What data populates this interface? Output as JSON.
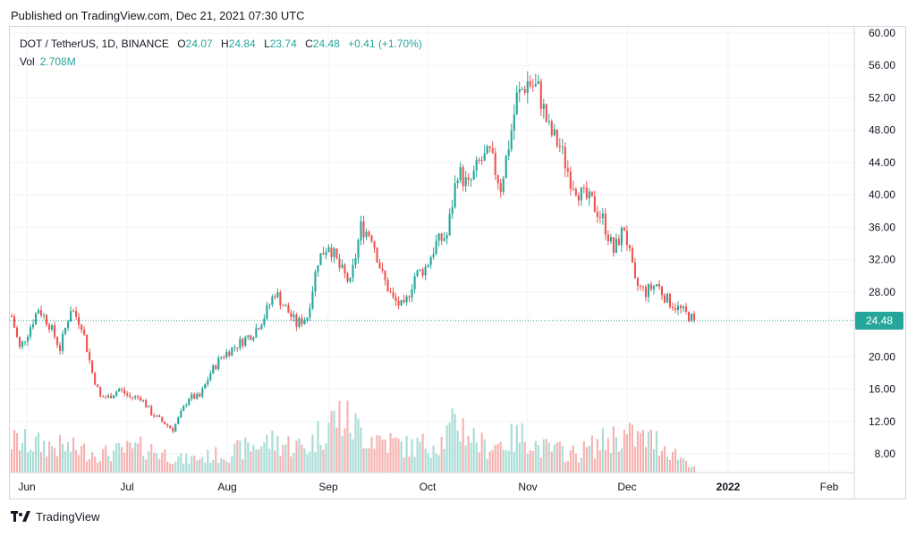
{
  "header": {
    "published": "Published on TradingView.com, Dec 21, 2021 07:30 UTC"
  },
  "legend": {
    "symbol": "DOT / TetherUS, 1D, BINANCE",
    "open_label": "O",
    "open": "24.07",
    "high_label": "H",
    "high": "24.84",
    "low_label": "L",
    "low": "23.74",
    "close_label": "C",
    "close": "24.48",
    "change": "+0.41 (+1.70%)",
    "vol_label": "Vol",
    "vol_value": "2.708M"
  },
  "last_price": "24.48",
  "footer": {
    "brand": "TradingView"
  },
  "colors": {
    "up": "#26a69a",
    "down": "#ef5350",
    "grid": "#f0f3fa",
    "border": "#d1d4dc"
  },
  "chart_data": {
    "type": "candlestick",
    "title": "DOT / TetherUS, 1D, BINANCE",
    "ylim": [
      4,
      60
    ],
    "y_ticks": [
      "60.00",
      "56.00",
      "52.00",
      "48.00",
      "44.00",
      "40.00",
      "36.00",
      "32.00",
      "28.00",
      "24.00",
      "20.00",
      "16.00",
      "12.00",
      "8.00"
    ],
    "x_ticks": [
      "Jun",
      "Jul",
      "Aug",
      "Sep",
      "Oct",
      "Nov",
      "Dec",
      "2022",
      "Feb"
    ],
    "last_close": 24.48,
    "close_path": [
      [
        0,
        25
      ],
      [
        3,
        21
      ],
      [
        6,
        23
      ],
      [
        10,
        26
      ],
      [
        14,
        24
      ],
      [
        18,
        21
      ],
      [
        22,
        26
      ],
      [
        26,
        24
      ],
      [
        30,
        18
      ],
      [
        33,
        15
      ],
      [
        36,
        15
      ],
      [
        40,
        16
      ],
      [
        44,
        15
      ],
      [
        48,
        15
      ],
      [
        52,
        13
      ],
      [
        56,
        12
      ],
      [
        60,
        11
      ],
      [
        63,
        13
      ],
      [
        66,
        15
      ],
      [
        70,
        15
      ],
      [
        74,
        18
      ],
      [
        78,
        20
      ],
      [
        82,
        21
      ],
      [
        86,
        22
      ],
      [
        90,
        23
      ],
      [
        94,
        25
      ],
      [
        98,
        28
      ],
      [
        102,
        26
      ],
      [
        106,
        24
      ],
      [
        110,
        25
      ],
      [
        114,
        32
      ],
      [
        118,
        34
      ],
      [
        122,
        31
      ],
      [
        126,
        29
      ],
      [
        130,
        36
      ],
      [
        134,
        35
      ],
      [
        138,
        30
      ],
      [
        142,
        27
      ],
      [
        146,
        26
      ],
      [
        150,
        30
      ],
      [
        154,
        31
      ],
      [
        158,
        34
      ],
      [
        162,
        35
      ],
      [
        166,
        43
      ],
      [
        170,
        41
      ],
      [
        174,
        44
      ],
      [
        178,
        45
      ],
      [
        182,
        41
      ],
      [
        186,
        48
      ],
      [
        188,
        52
      ],
      [
        192,
        54
      ],
      [
        196,
        53
      ],
      [
        200,
        48
      ],
      [
        204,
        46
      ],
      [
        208,
        42
      ],
      [
        212,
        40
      ],
      [
        216,
        39
      ],
      [
        220,
        37
      ],
      [
        224,
        33
      ],
      [
        228,
        36
      ],
      [
        232,
        29
      ],
      [
        236,
        28
      ],
      [
        240,
        29
      ],
      [
        244,
        27
      ],
      [
        248,
        26
      ],
      [
        252,
        25
      ],
      [
        254,
        24.48
      ]
    ],
    "volume_path": [
      [
        0,
        5
      ],
      [
        20,
        4
      ],
      [
        34,
        3
      ],
      [
        50,
        4
      ],
      [
        64,
        2
      ],
      [
        80,
        3
      ],
      [
        96,
        5
      ],
      [
        110,
        4
      ],
      [
        118,
        8
      ],
      [
        122,
        9
      ],
      [
        132,
        6
      ],
      [
        148,
        4
      ],
      [
        160,
        5
      ],
      [
        166,
        8
      ],
      [
        176,
        4
      ],
      [
        192,
        6
      ],
      [
        196,
        4
      ],
      [
        210,
        3
      ],
      [
        226,
        6
      ],
      [
        240,
        5
      ],
      [
        254,
        1
      ]
    ]
  }
}
